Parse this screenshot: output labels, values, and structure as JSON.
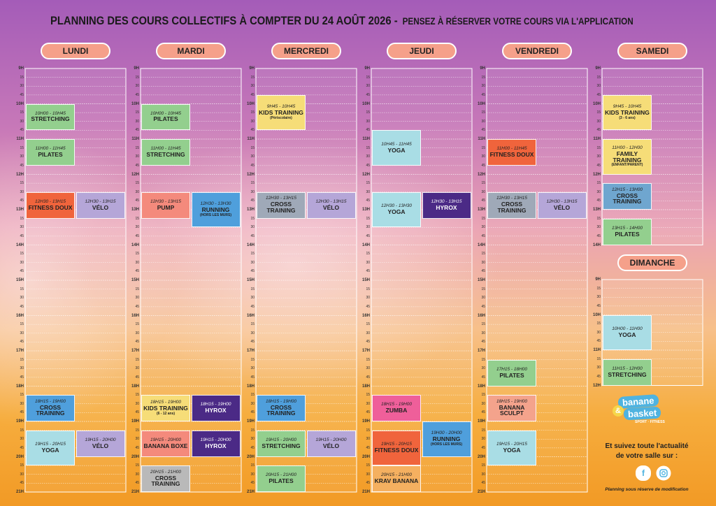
{
  "header": {
    "title": "PLANNING DES COURS COLLECTIFS À COMPTER DU 24 AOÛT 2026 -",
    "subtitle": "PENSEZ À RÉSERVER VOTRE COURS VIA L'APPLICATION"
  },
  "time_labels": [
    "9H",
    "15",
    "30",
    "45",
    "10H",
    "15",
    "30",
    "45",
    "11H",
    "15",
    "30",
    "45",
    "12H",
    "15",
    "30",
    "45",
    "13H",
    "15",
    "30",
    "45",
    "14H",
    "15",
    "30",
    "45",
    "15H",
    "15",
    "30",
    "45",
    "16H",
    "15",
    "30",
    "45",
    "17H",
    "15",
    "30",
    "45",
    "18H",
    "15",
    "30",
    "45",
    "19H",
    "15",
    "30",
    "45",
    "20H",
    "15",
    "30",
    "45",
    "21H"
  ],
  "days": [
    {
      "name": "LUNDI",
      "classes": [
        {
          "time": "10H00 - 10H45",
          "name": "STRETCHING",
          "color": "#93cf8e"
        },
        {
          "time": "11H00 - 11H45",
          "name": "PILATES",
          "color": "#93cf8e"
        },
        {
          "time": "12H30 - 13H15",
          "name": "FITNESS DOUX",
          "color": "#f0643c"
        },
        {
          "time": "12H30 - 13H15",
          "name": "VÉLO",
          "color": "#b5a6d8"
        },
        {
          "time": "18H15 - 19H00",
          "name": "CROSS TRAINING",
          "color": "#4f9fdc"
        },
        {
          "time": "19H15 - 20H15",
          "name": "YOGA",
          "color": "#a9dde5"
        },
        {
          "time": "19H15 - 20H00",
          "name": "VÉLO",
          "color": "#b5a6d8"
        }
      ]
    },
    {
      "name": "MARDI",
      "classes": [
        {
          "time": "10H00 - 10H45",
          "name": "PILATES",
          "color": "#93cf8e"
        },
        {
          "time": "11H00 - 11H45",
          "name": "STRETCHING",
          "color": "#93cf8e"
        },
        {
          "time": "12H30 - 13H15",
          "name": "PUMP",
          "color": "#f48a7c"
        },
        {
          "time": "12H30 - 13H30",
          "name": "RUNNING",
          "note": "(HORS LES MURS)",
          "color": "#4f9fdc"
        },
        {
          "time": "18H15 - 19H00",
          "name": "KIDS TRAINING",
          "note": "(6 - 12 ans)",
          "color": "#f6dd78"
        },
        {
          "time": "18H15 - 19H00",
          "name": "HYROX",
          "color": "#4b2a86"
        },
        {
          "time": "19H15 - 20H00",
          "name": "BANANA BOXE",
          "color": "#f48a7c"
        },
        {
          "time": "19H15 - 20H00",
          "name": "HYROX",
          "color": "#4b2a86"
        },
        {
          "time": "20H15 - 21H00",
          "name": "CROSS TRAINING",
          "color": "#b9b9b9"
        }
      ]
    },
    {
      "name": "MERCREDI",
      "classes": [
        {
          "time": "9H45 - 10H45",
          "name": "KIDS TRAINING",
          "note": "(Périscolaire)",
          "color": "#f6dd78"
        },
        {
          "time": "12H30 - 13H15",
          "name": "CROSS TRAINING",
          "color": "#9fa9b8"
        },
        {
          "time": "12H30 - 13H15",
          "name": "VÉLO",
          "color": "#b5a6d8"
        },
        {
          "time": "18H15 - 19H00",
          "name": "CROSS TRAINING",
          "color": "#4f9fdc"
        },
        {
          "time": "19H15 - 20H00",
          "name": "STRETCHING",
          "color": "#93cf8e"
        },
        {
          "time": "19H15 - 20H00",
          "name": "VÉLO",
          "color": "#b5a6d8"
        },
        {
          "time": "20H15 - 21H00",
          "name": "PILATES",
          "color": "#93cf8e"
        }
      ]
    },
    {
      "name": "JEUDI",
      "classes": [
        {
          "time": "10H45 - 11H45",
          "name": "YOGA",
          "color": "#a9dde5"
        },
        {
          "time": "12H30 - 13H30",
          "name": "YOGA",
          "color": "#a9dde5"
        },
        {
          "time": "12H30 - 13H15",
          "name": "HYROX",
          "color": "#4b2a86"
        },
        {
          "time": "18H15 - 19H00",
          "name": "ZUMBA",
          "color": "#ef5f9a"
        },
        {
          "time": "19H15 - 20H15",
          "name": "FITNESS DOUX",
          "color": "#f0643c"
        },
        {
          "time": "19H00 - 20H00",
          "name": "RUNNING",
          "note": "(HORS LES MURS)",
          "color": "#4f9fdc"
        },
        {
          "time": "20H15 - 21H00",
          "name": "KRAV BANANA",
          "color": "#f5b060"
        }
      ]
    },
    {
      "name": "VENDREDI",
      "classes": [
        {
          "time": "11H00 - 11H45",
          "name": "FITNESS DOUX",
          "color": "#f0643c"
        },
        {
          "time": "12H30 - 13H15",
          "name": "CROSS TRAINING",
          "color": "#9fa9b8"
        },
        {
          "time": "12H30 - 13H15",
          "name": "VÉLO",
          "color": "#b5a6d8"
        },
        {
          "time": "17H15 - 18H00",
          "name": "PILATES",
          "color": "#93cf8e"
        },
        {
          "time": "18H15 - 19H00",
          "name": "BANANA SCULPT",
          "color": "#f4a38c"
        },
        {
          "time": "19H15 - 20H15",
          "name": "YOGA",
          "color": "#a9dde5"
        }
      ]
    },
    {
      "name": "SAMEDI",
      "classes": [
        {
          "time": "9H45 - 10H45",
          "name": "KIDS TRAINING",
          "note": "(3 - 6 ans)",
          "color": "#f6dd78"
        },
        {
          "time": "11H00 - 12H00",
          "name": "FAMILY TRAINING",
          "note": "(ENFANT/PARENT)",
          "color": "#f6dd78"
        },
        {
          "time": "12H15 - 13H00",
          "name": "CROSS TRAINING",
          "color": "#6fa6cf"
        },
        {
          "time": "13H15 - 14H00",
          "name": "PILATES",
          "color": "#93cf8e"
        }
      ]
    },
    {
      "name": "DIMANCHE",
      "classes": [
        {
          "time": "10H00 - 11H00",
          "name": "YOGA",
          "color": "#a9dde5"
        },
        {
          "time": "11H15 - 12H00",
          "name": "STRETCHING",
          "color": "#93cf8e"
        }
      ]
    }
  ],
  "footer": {
    "brand_top": "banane",
    "brand_amp": "&",
    "brand_bottom": "basket",
    "brand_tagline": "SPORT · FITNESS",
    "follow_line1": "Et suivez toute l'actualité",
    "follow_line2": "de votre salle sur :",
    "facebook_icon": "f",
    "disclaimer": "Planning sous réserve de modification"
  }
}
